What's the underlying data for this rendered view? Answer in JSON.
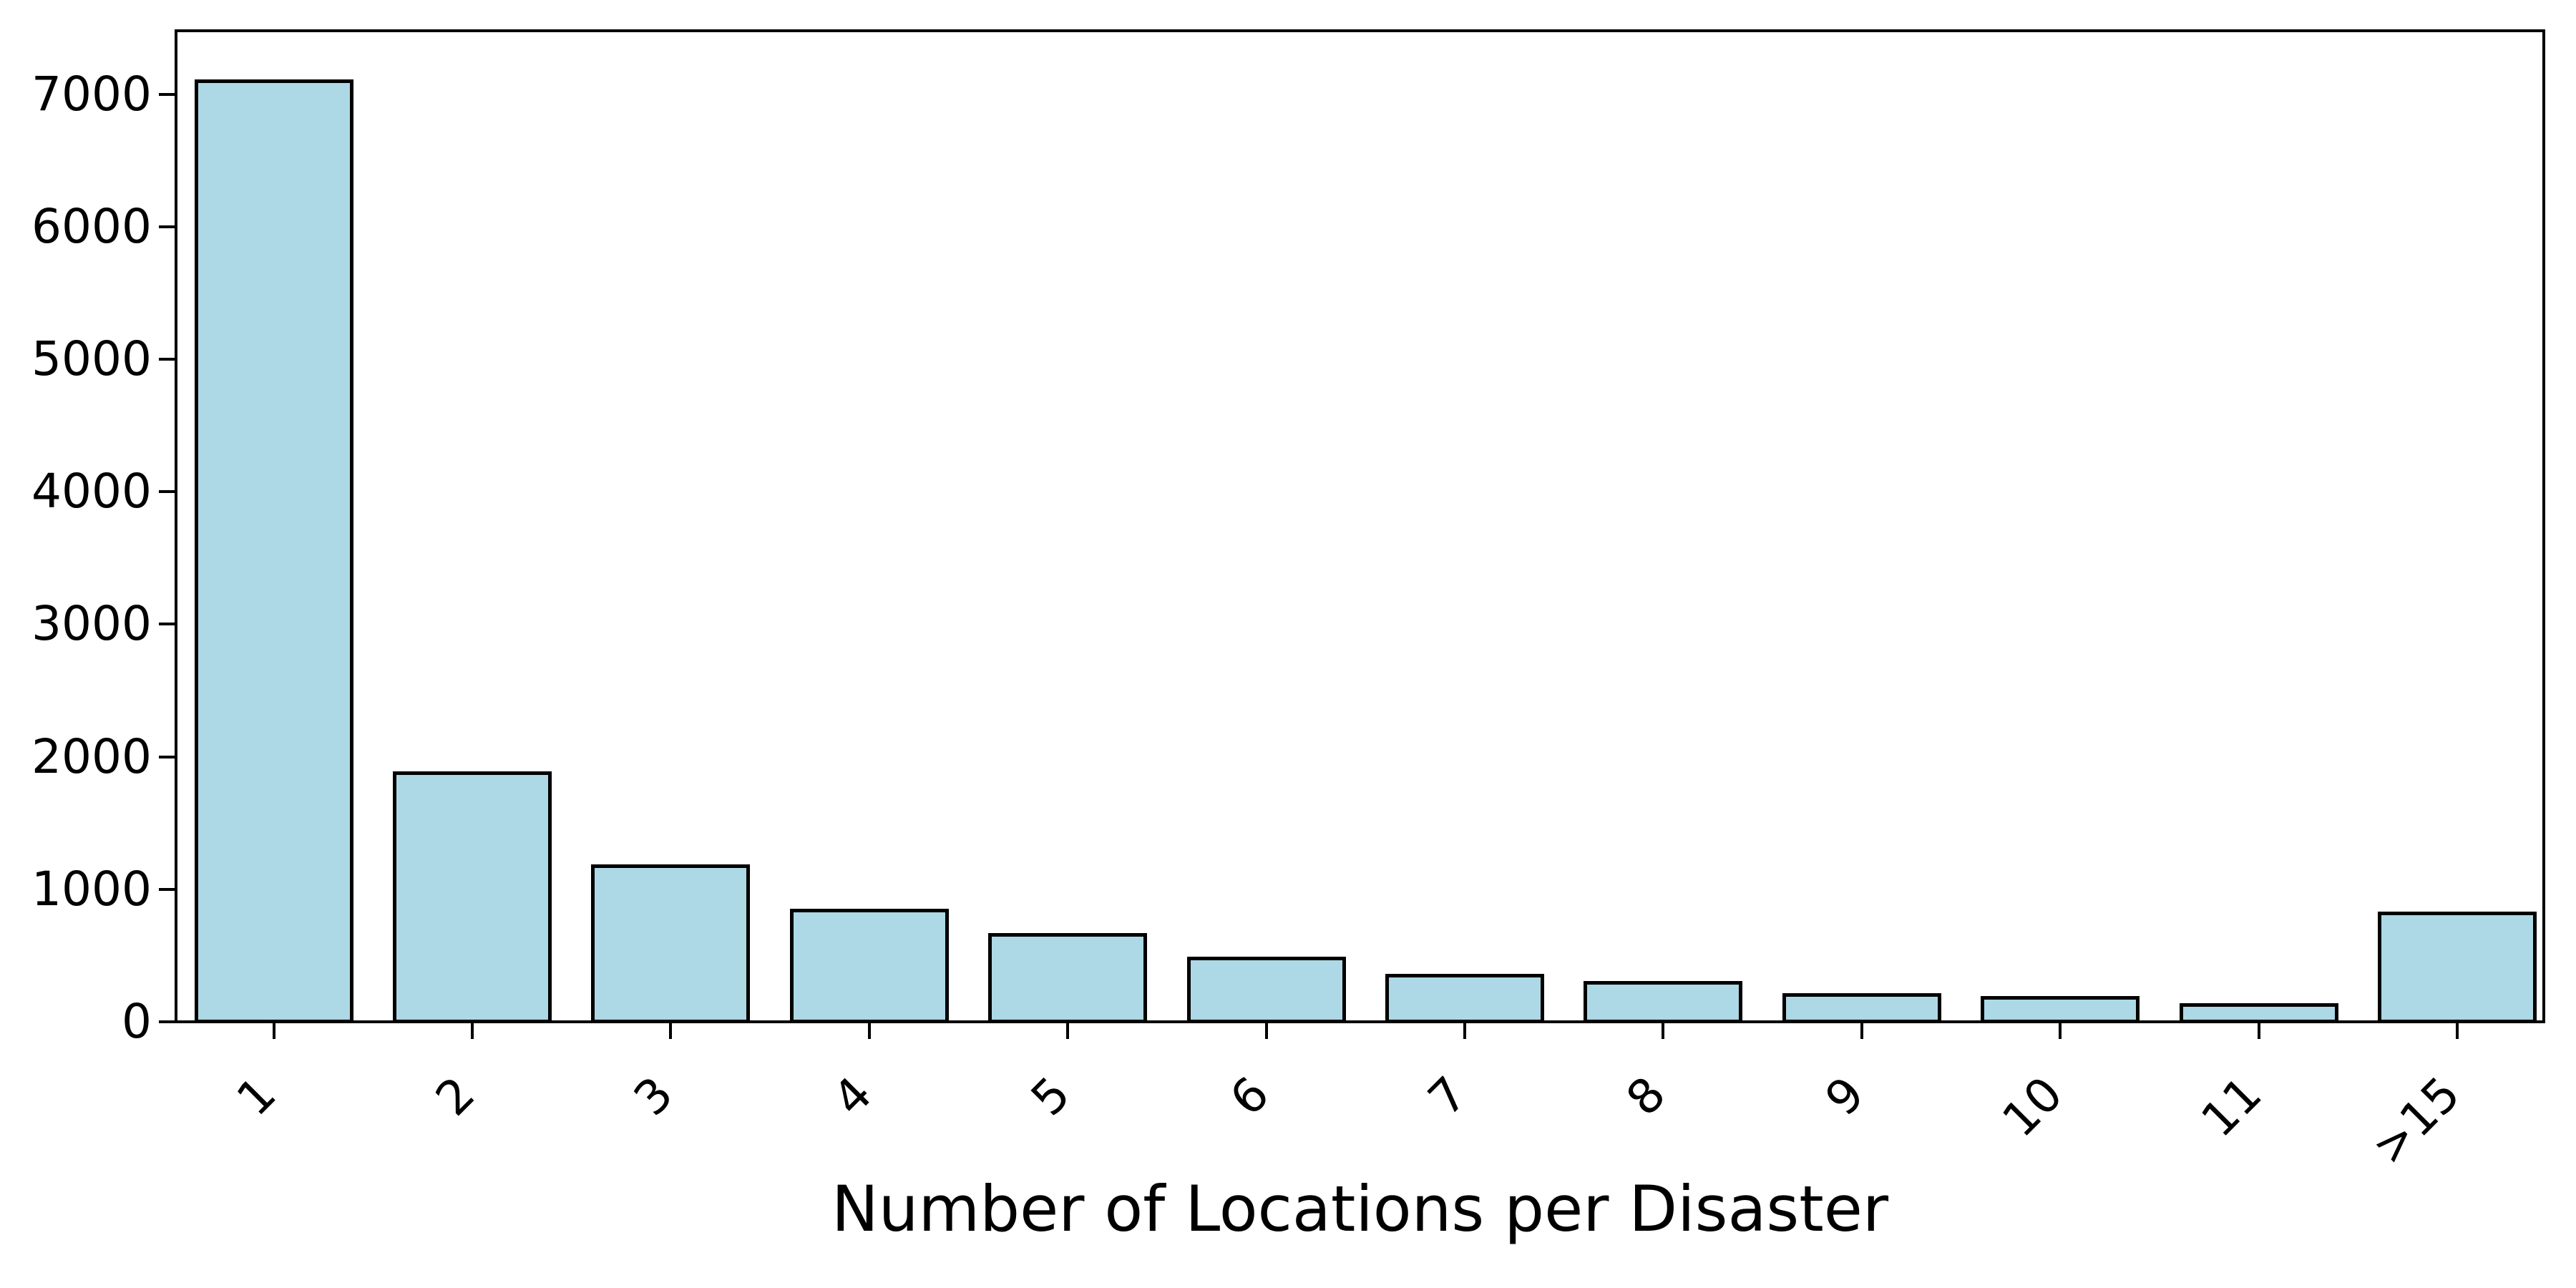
{
  "figure": {
    "background_color": "#ffffff",
    "text_color": "#000000"
  },
  "chart_data": {
    "type": "bar",
    "title": "",
    "xlabel": "Number of Locations per Disaster",
    "ylabel": "",
    "categories": [
      "1",
      "2",
      "3",
      "4",
      "5",
      "6",
      "7",
      "8",
      "9",
      "10",
      "11",
      ">15"
    ],
    "values": [
      7120,
      1900,
      1200,
      865,
      680,
      500,
      375,
      320,
      225,
      205,
      150,
      845
    ],
    "yticks": [
      0,
      1000,
      2000,
      3000,
      4000,
      5000,
      6000,
      7000
    ],
    "ylim": [
      0,
      7500
    ],
    "xlim_slots": 12,
    "bar_fill_color": "#ADD8E6",
    "bar_edge_color": "#000000",
    "axes_edge_color": "#000000",
    "grid": false,
    "legend": null,
    "x_tick_rotation_deg": 45
  }
}
